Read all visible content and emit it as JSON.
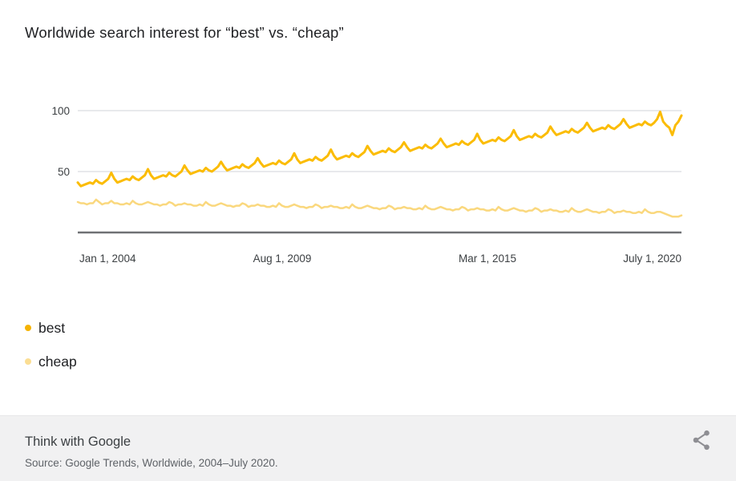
{
  "title": "Worldwide search interest for “best” vs. “cheap”",
  "chart_data": {
    "type": "line",
    "title": "Worldwide search interest for “best” vs. “cheap”",
    "x_unit": "month",
    "x_range": [
      "Jan 2004",
      "July 2020"
    ],
    "x_tick_labels": [
      "Jan 1, 2004",
      "Aug 1, 2009",
      "Mar 1, 2015",
      "July 1, 2020"
    ],
    "y_tick_labels": [
      "100",
      "50"
    ],
    "y_ticks": [
      100,
      50
    ],
    "ylim": [
      0,
      100
    ],
    "grid": "horizontal",
    "legend_position": "below-left",
    "series": [
      {
        "name": "best",
        "color": "#FBBC04",
        "stroke_width": 3,
        "values": [
          41,
          38,
          39,
          40,
          41,
          40,
          43,
          41,
          40,
          42,
          44,
          49,
          44,
          41,
          42,
          43,
          44,
          43,
          46,
          44,
          43,
          45,
          47,
          52,
          47,
          44,
          45,
          46,
          47,
          46,
          49,
          47,
          46,
          48,
          50,
          55,
          51,
          48,
          49,
          50,
          51,
          50,
          53,
          51,
          50,
          52,
          54,
          58,
          54,
          51,
          52,
          53,
          54,
          53,
          56,
          54,
          53,
          55,
          57,
          61,
          57,
          54,
          55,
          56,
          57,
          56,
          59,
          57,
          56,
          58,
          60,
          65,
          60,
          57,
          58,
          59,
          60,
          59,
          62,
          60,
          59,
          61,
          63,
          68,
          63,
          60,
          61,
          62,
          63,
          62,
          65,
          63,
          62,
          64,
          66,
          71,
          67,
          64,
          65,
          66,
          67,
          66,
          69,
          67,
          66,
          68,
          70,
          74,
          70,
          67,
          68,
          69,
          70,
          69,
          72,
          70,
          69,
          71,
          73,
          77,
          73,
          70,
          71,
          72,
          73,
          72,
          75,
          73,
          72,
          74,
          76,
          81,
          76,
          73,
          74,
          75,
          76,
          75,
          78,
          76,
          75,
          77,
          79,
          84,
          79,
          76,
          77,
          78,
          79,
          78,
          81,
          79,
          78,
          80,
          82,
          87,
          83,
          80,
          81,
          82,
          83,
          82,
          85,
          83,
          82,
          84,
          86,
          90,
          86,
          83,
          84,
          85,
          86,
          85,
          88,
          86,
          85,
          87,
          89,
          93,
          89,
          86,
          87,
          88,
          89,
          88,
          91,
          89,
          88,
          90,
          93,
          99,
          91,
          88,
          86,
          80,
          88,
          91,
          96
        ]
      },
      {
        "name": "cheap",
        "color": "#FAD87E",
        "stroke_width": 2.5,
        "values": [
          25,
          24,
          24,
          23,
          24,
          24,
          27,
          25,
          23,
          24,
          24,
          26,
          24,
          24,
          23,
          23,
          24,
          23,
          26,
          24,
          23,
          23,
          24,
          25,
          24,
          23,
          23,
          22,
          23,
          23,
          25,
          24,
          22,
          23,
          23,
          24,
          23,
          23,
          22,
          22,
          23,
          22,
          25,
          23,
          22,
          22,
          23,
          24,
          23,
          22,
          22,
          21,
          22,
          22,
          24,
          23,
          21,
          22,
          22,
          23,
          22,
          22,
          21,
          21,
          22,
          21,
          24,
          22,
          21,
          21,
          22,
          23,
          22,
          21,
          21,
          20,
          21,
          21,
          23,
          22,
          20,
          21,
          21,
          22,
          21,
          21,
          20,
          20,
          21,
          20,
          23,
          21,
          20,
          20,
          21,
          22,
          21,
          20,
          20,
          19,
          20,
          20,
          22,
          21,
          19,
          20,
          20,
          21,
          20,
          20,
          19,
          19,
          20,
          19,
          22,
          20,
          19,
          19,
          20,
          21,
          20,
          19,
          19,
          18,
          19,
          19,
          21,
          20,
          18,
          19,
          19,
          20,
          19,
          19,
          18,
          18,
          19,
          18,
          21,
          19,
          18,
          18,
          19,
          20,
          19,
          18,
          18,
          17,
          18,
          18,
          20,
          19,
          17,
          18,
          18,
          19,
          18,
          18,
          17,
          17,
          18,
          17,
          20,
          18,
          17,
          17,
          18,
          19,
          18,
          17,
          17,
          16,
          17,
          17,
          19,
          18,
          16,
          17,
          17,
          18,
          17,
          17,
          16,
          16,
          17,
          16,
          19,
          17,
          16,
          16,
          17,
          17,
          16,
          15,
          14,
          13,
          13,
          13,
          14
        ]
      }
    ]
  },
  "legend": {
    "items": [
      {
        "label": "best",
        "color": "#F5B301"
      },
      {
        "label": "cheap",
        "color": "#FBDE93"
      }
    ]
  },
  "footer": {
    "brand": "Think with Google",
    "source": "Source: Google Trends, Worldwide, 2004–July 2020."
  },
  "icons": {
    "share": "share-icon"
  },
  "colors": {
    "title_text": "#202124",
    "tick_text": "#3C4043",
    "gridline": "#DADCE0",
    "axis_line": "#6F7174",
    "footer_background": "#F1F1F2",
    "footer_source_text": "#5F6368",
    "share_icon": "#8E8E93"
  }
}
